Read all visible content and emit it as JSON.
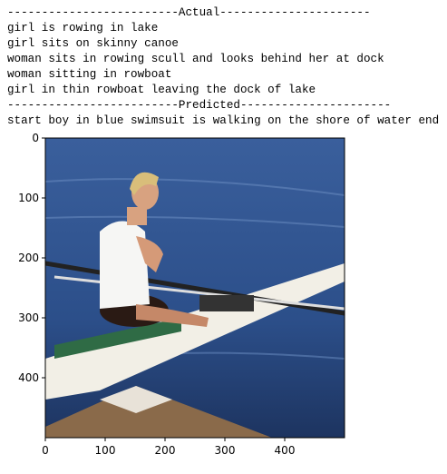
{
  "output": {
    "actual_header": "-------------------------Actual----------------------",
    "actual": [
      "girl is rowing in lake",
      "girl sits on skinny canoe",
      "woman sits in rowing scull and looks behind her at dock",
      "woman sitting in rowboat",
      "girl in thin rowboat leaving the dock of lake"
    ],
    "predicted_header": "-------------------------Predicted----------------------",
    "predicted": "start boy in blue swimsuit is walking on the shore of water end"
  },
  "plot": {
    "xlim": [
      0,
      500
    ],
    "ylim": [
      500,
      0
    ],
    "xticks": [
      0,
      100,
      200,
      300,
      400
    ],
    "yticks": [
      0,
      100,
      200,
      300,
      400
    ]
  }
}
